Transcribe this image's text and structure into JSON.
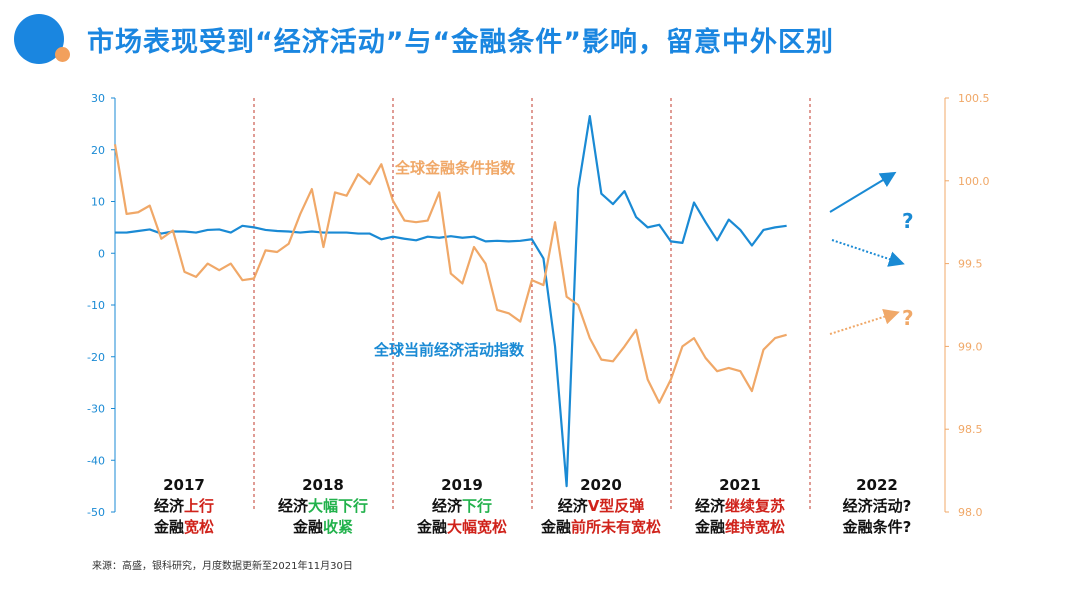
{
  "title": "市场表现受到“经济活动”与“金融条件”影响，留意中外区别",
  "source": "来源：高盛，银科研究，月度数据更新至2021年11月30日",
  "annotations": [
    {
      "year": "2017",
      "l1a": "经济",
      "l1b": "上行",
      "l1c": "red",
      "l2a": "金融",
      "l2b": "宽松",
      "l2c": "red"
    },
    {
      "year": "2018",
      "l1a": "经济",
      "l1b": "大幅下行",
      "l1c": "green",
      "l2a": "金融",
      "l2b": "收紧",
      "l2c": "green"
    },
    {
      "year": "2019",
      "l1a": "经济",
      "l1b": "下行",
      "l1c": "green",
      "l2a": "金融",
      "l2b": "大幅宽松",
      "l2c": "red"
    },
    {
      "year": "2020",
      "l1a": "经济",
      "l1b": "V型反弹",
      "l1c": "red",
      "l2a": "金融",
      "l2b": "前所未有宽松",
      "l2c": "red"
    },
    {
      "year": "2021",
      "l1a": "经济",
      "l1b": "继续复苏",
      "l1c": "red",
      "l2a": "金融",
      "l2b": "维持宽松",
      "l2c": "red"
    },
    {
      "year": "2022",
      "l1a": "经济活动?",
      "l1b": "",
      "l1c": "",
      "l2a": "金融条件?",
      "l2b": "",
      "l2c": ""
    }
  ],
  "chart_data": {
    "type": "line",
    "x_start": "2017-01",
    "x_end": "2021-11",
    "frequency": "monthly",
    "left_axis": {
      "ylim": [
        -50,
        30
      ],
      "ticks": [
        "30",
        "20",
        "10",
        "0",
        "-10",
        "-20",
        "-30",
        "-40",
        "-50"
      ]
    },
    "right_axis": {
      "ylim": [
        98.0,
        100.5
      ],
      "ticks": [
        "100.5",
        "100.0",
        "99.5",
        "99.0",
        "98.5",
        "98.0"
      ]
    },
    "series": [
      {
        "name": "全球当前经济活动指数",
        "axis": "left",
        "color": "#1a8ad4",
        "values": [
          4,
          4,
          4.3,
          4.6,
          3.8,
          4.2,
          4.2,
          4.0,
          4.5,
          4.6,
          4.0,
          5.3,
          5,
          4.5,
          4.3,
          4.2,
          4.0,
          4.2,
          4.0,
          4.0,
          4.0,
          3.8,
          3.8,
          2.7,
          3.2,
          2.8,
          2.5,
          3.2,
          3.0,
          3.3,
          3.0,
          3.2,
          2.3,
          2.4,
          2.3,
          2.4,
          2.7,
          -1,
          -18,
          -45,
          12.5,
          26.5,
          11.5,
          9.5,
          12,
          7,
          5,
          5.5,
          2.3,
          2.0,
          9.8,
          6,
          2.5,
          6.5,
          4.5,
          1.5,
          4.5,
          5,
          5.3
        ]
      },
      {
        "name": "全球金融条件指数",
        "axis": "right",
        "color": "#f0a868",
        "values": [
          100.22,
          99.8,
          99.81,
          99.85,
          99.65,
          99.7,
          99.45,
          99.42,
          99.5,
          99.46,
          99.5,
          99.4,
          99.41,
          99.58,
          99.57,
          99.62,
          99.8,
          99.95,
          99.6,
          99.93,
          99.91,
          100.04,
          99.98,
          100.1,
          99.88,
          99.76,
          99.75,
          99.76,
          99.93,
          99.44,
          99.38,
          99.6,
          99.5,
          99.22,
          99.2,
          99.15,
          99.4,
          99.37,
          99.75,
          99.3,
          99.25,
          99.05,
          98.92,
          98.91,
          99.0,
          99.1,
          98.8,
          98.66,
          98.8,
          99.0,
          99.05,
          98.93,
          98.85,
          98.87,
          98.85,
          98.73,
          98.98,
          99.05,
          99.07
        ]
      }
    ],
    "question_marks": [
      "?",
      "?"
    ]
  }
}
